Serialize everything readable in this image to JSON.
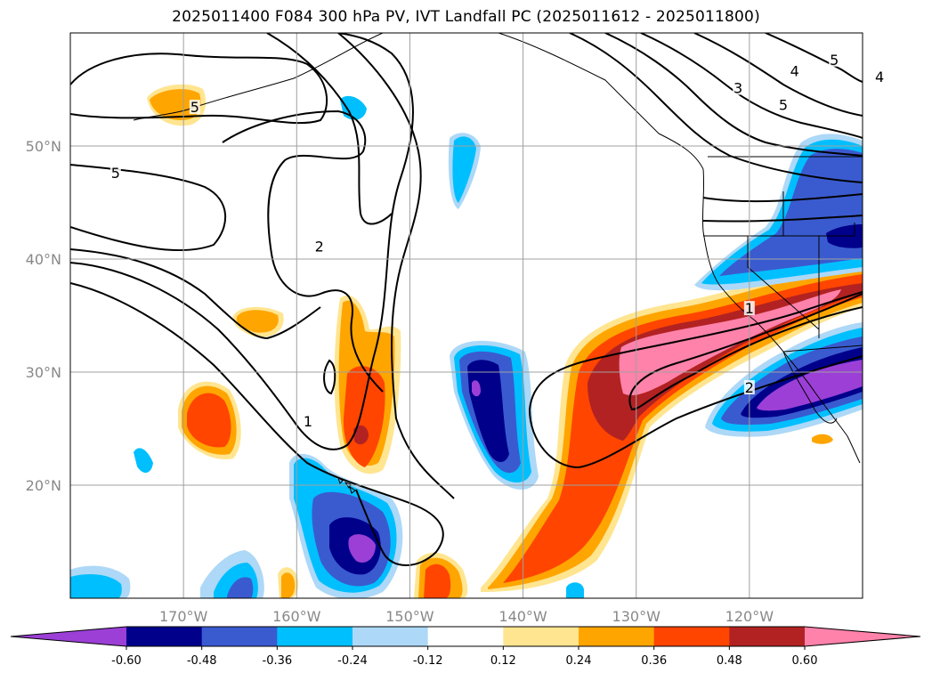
{
  "title": "2025011400 F084 300 hPa PV, IVT Landfall PC (2025011612 - 2025011800)",
  "map": {
    "lat_ticks": [
      {
        "label": "50°N",
        "lat": 50
      },
      {
        "label": "40°N",
        "lat": 40
      },
      {
        "label": "30°N",
        "lat": 30
      },
      {
        "label": "20°N",
        "lat": 20
      }
    ],
    "lon_ticks": [
      {
        "label": "170°W",
        "lon": -170
      },
      {
        "label": "160°W",
        "lon": -160
      },
      {
        "label": "150°W",
        "lon": -150
      },
      {
        "label": "140°W",
        "lon": -140
      },
      {
        "label": "130°W",
        "lon": -130
      },
      {
        "label": "120°W",
        "lon": -120
      }
    ],
    "extent": {
      "lon_min": -180,
      "lon_max": -110,
      "lat_min": 10,
      "lat_max": 60
    },
    "pv_contour_labels": [
      {
        "text": "5",
        "lon": -176,
        "lat": 47.5
      },
      {
        "text": "5",
        "lon": -169,
        "lat": 53.3
      },
      {
        "text": "2",
        "lon": -158,
        "lat": 41
      },
      {
        "text": "1",
        "lon": -159,
        "lat": 25.5
      },
      {
        "text": "1",
        "lon": -120,
        "lat": 35.5
      },
      {
        "text": "2",
        "lon": -120,
        "lat": 28.5
      },
      {
        "text": "3",
        "lon": -121,
        "lat": 55
      },
      {
        "text": "4",
        "lon": -116,
        "lat": 56.5
      },
      {
        "text": "5",
        "lon": -117,
        "lat": 53.5
      },
      {
        "text": "5",
        "lon": -112.5,
        "lat": 57.5
      },
      {
        "text": "4",
        "lon": -108.5,
        "lat": 56
      }
    ]
  },
  "colorbar": {
    "ticks": [
      "-0.60",
      "-0.48",
      "-0.36",
      "-0.24",
      "-0.12",
      "0.12",
      "0.24",
      "0.36",
      "0.48",
      "0.60"
    ],
    "colors": {
      "under": "#9b3fd6",
      "bins": [
        "#9b3fd6",
        "#00008b",
        "#3a5bd0",
        "#00bfff",
        "#add8f7",
        "#ffffff",
        "#ffe590",
        "#ffa500",
        "#ff4500",
        "#b22222",
        "#ff82ab"
      ],
      "over": "#ff82ab"
    }
  }
}
